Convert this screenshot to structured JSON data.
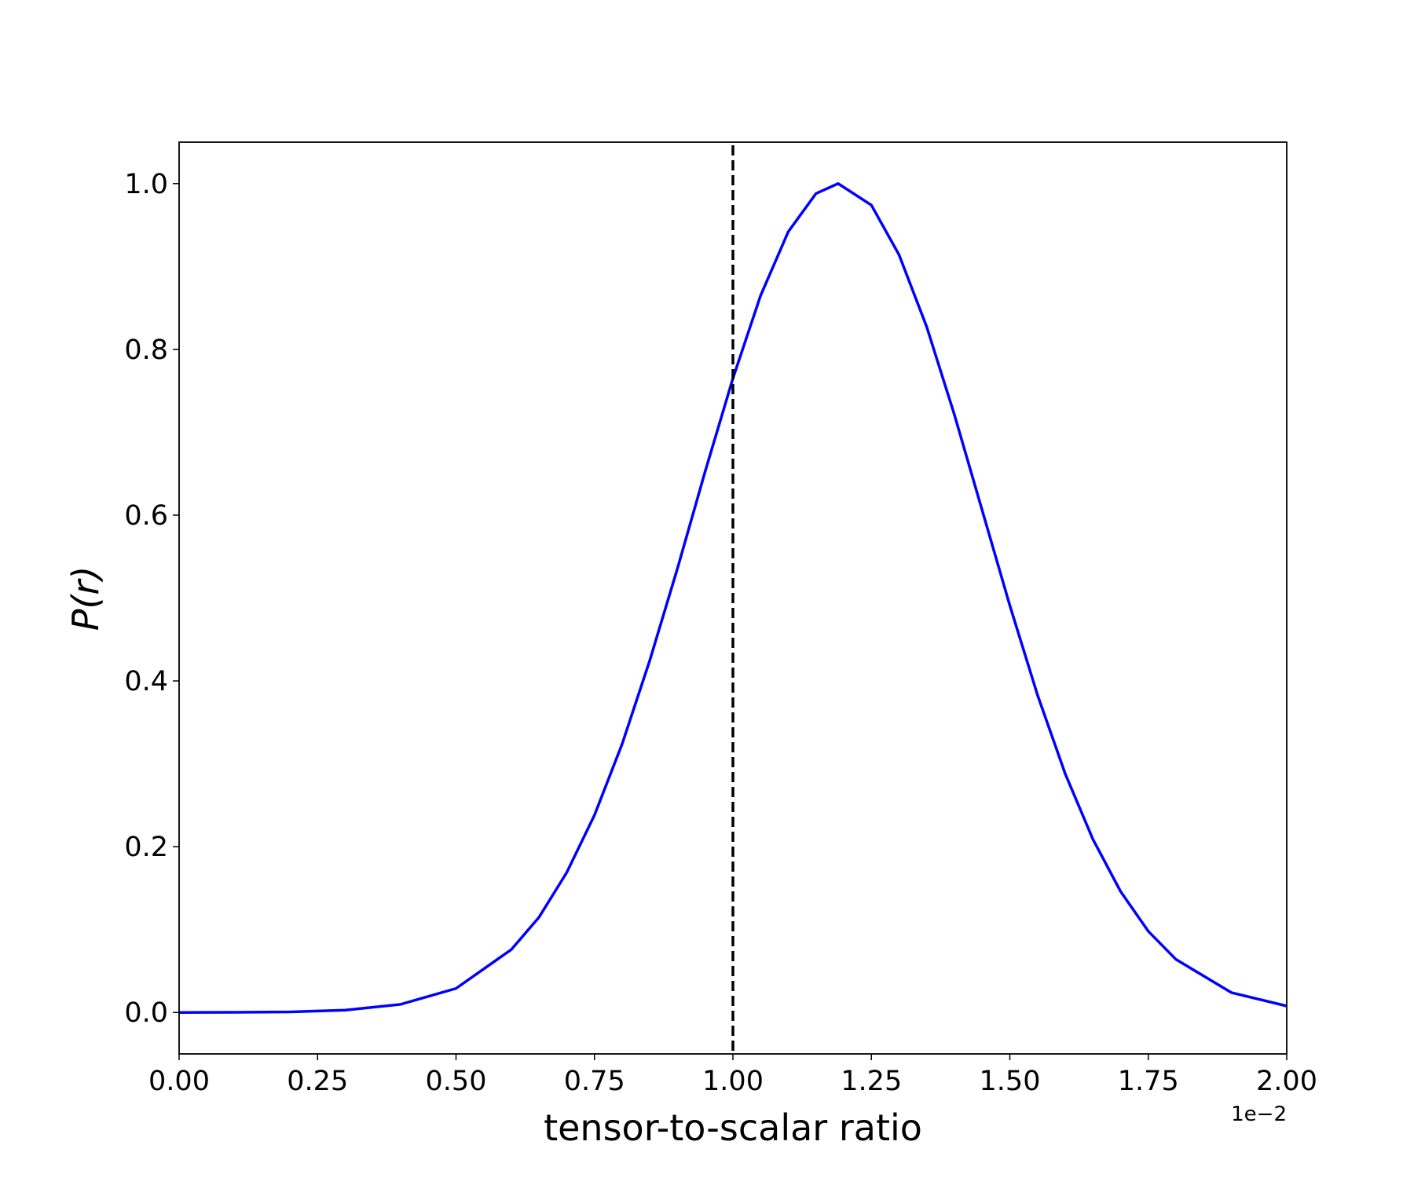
{
  "chart_data": {
    "type": "line",
    "x_label": "tensor-to-scalar ratio",
    "y_label": "P(r)",
    "x_offset_text": "1e−2",
    "x": [
      0,
      0.1,
      0.2,
      0.3,
      0.4,
      0.5,
      0.6,
      0.65,
      0.7,
      0.75,
      0.8,
      0.85,
      0.9,
      0.95,
      1.0,
      1.05,
      1.1,
      1.15,
      1.19,
      1.25,
      1.3,
      1.35,
      1.4,
      1.45,
      1.5,
      1.55,
      1.6,
      1.65,
      1.7,
      1.75,
      1.8,
      1.9,
      2.0
    ],
    "series": [
      {
        "name": "P(r)",
        "color": "#0000ff",
        "values": [
          0.0,
          0.0002,
          0.0007,
          0.0028,
          0.0098,
          0.029,
          0.076,
          0.115,
          0.169,
          0.238,
          0.324,
          0.425,
          0.536,
          0.653,
          0.765,
          0.865,
          0.942,
          0.988,
          1.0,
          0.974,
          0.914,
          0.827,
          0.721,
          0.606,
          0.491,
          0.383,
          0.288,
          0.209,
          0.146,
          0.098,
          0.064,
          0.024,
          0.0078
        ]
      }
    ],
    "vline": 1.0,
    "vline_color": "#000000",
    "xlim": [
      0,
      2
    ],
    "ylim": [
      -0.05,
      1.05
    ],
    "xticks": [
      {
        "value": 0,
        "label": "0.00"
      },
      {
        "value": 0.25,
        "label": "0.25"
      },
      {
        "value": 0.5,
        "label": "0.50"
      },
      {
        "value": 0.75,
        "label": "0.75"
      },
      {
        "value": 1,
        "label": "1.00"
      },
      {
        "value": 1.25,
        "label": "1.25"
      },
      {
        "value": 1.5,
        "label": "1.50"
      },
      {
        "value": 1.75,
        "label": "1.75"
      },
      {
        "value": 2,
        "label": "2.00"
      }
    ],
    "yticks": [
      {
        "value": 0,
        "label": "0.0"
      },
      0.2,
      0.4,
      0.6,
      0.8,
      {
        "value": 1,
        "label": "1.0"
      }
    ],
    "grid": false
  }
}
